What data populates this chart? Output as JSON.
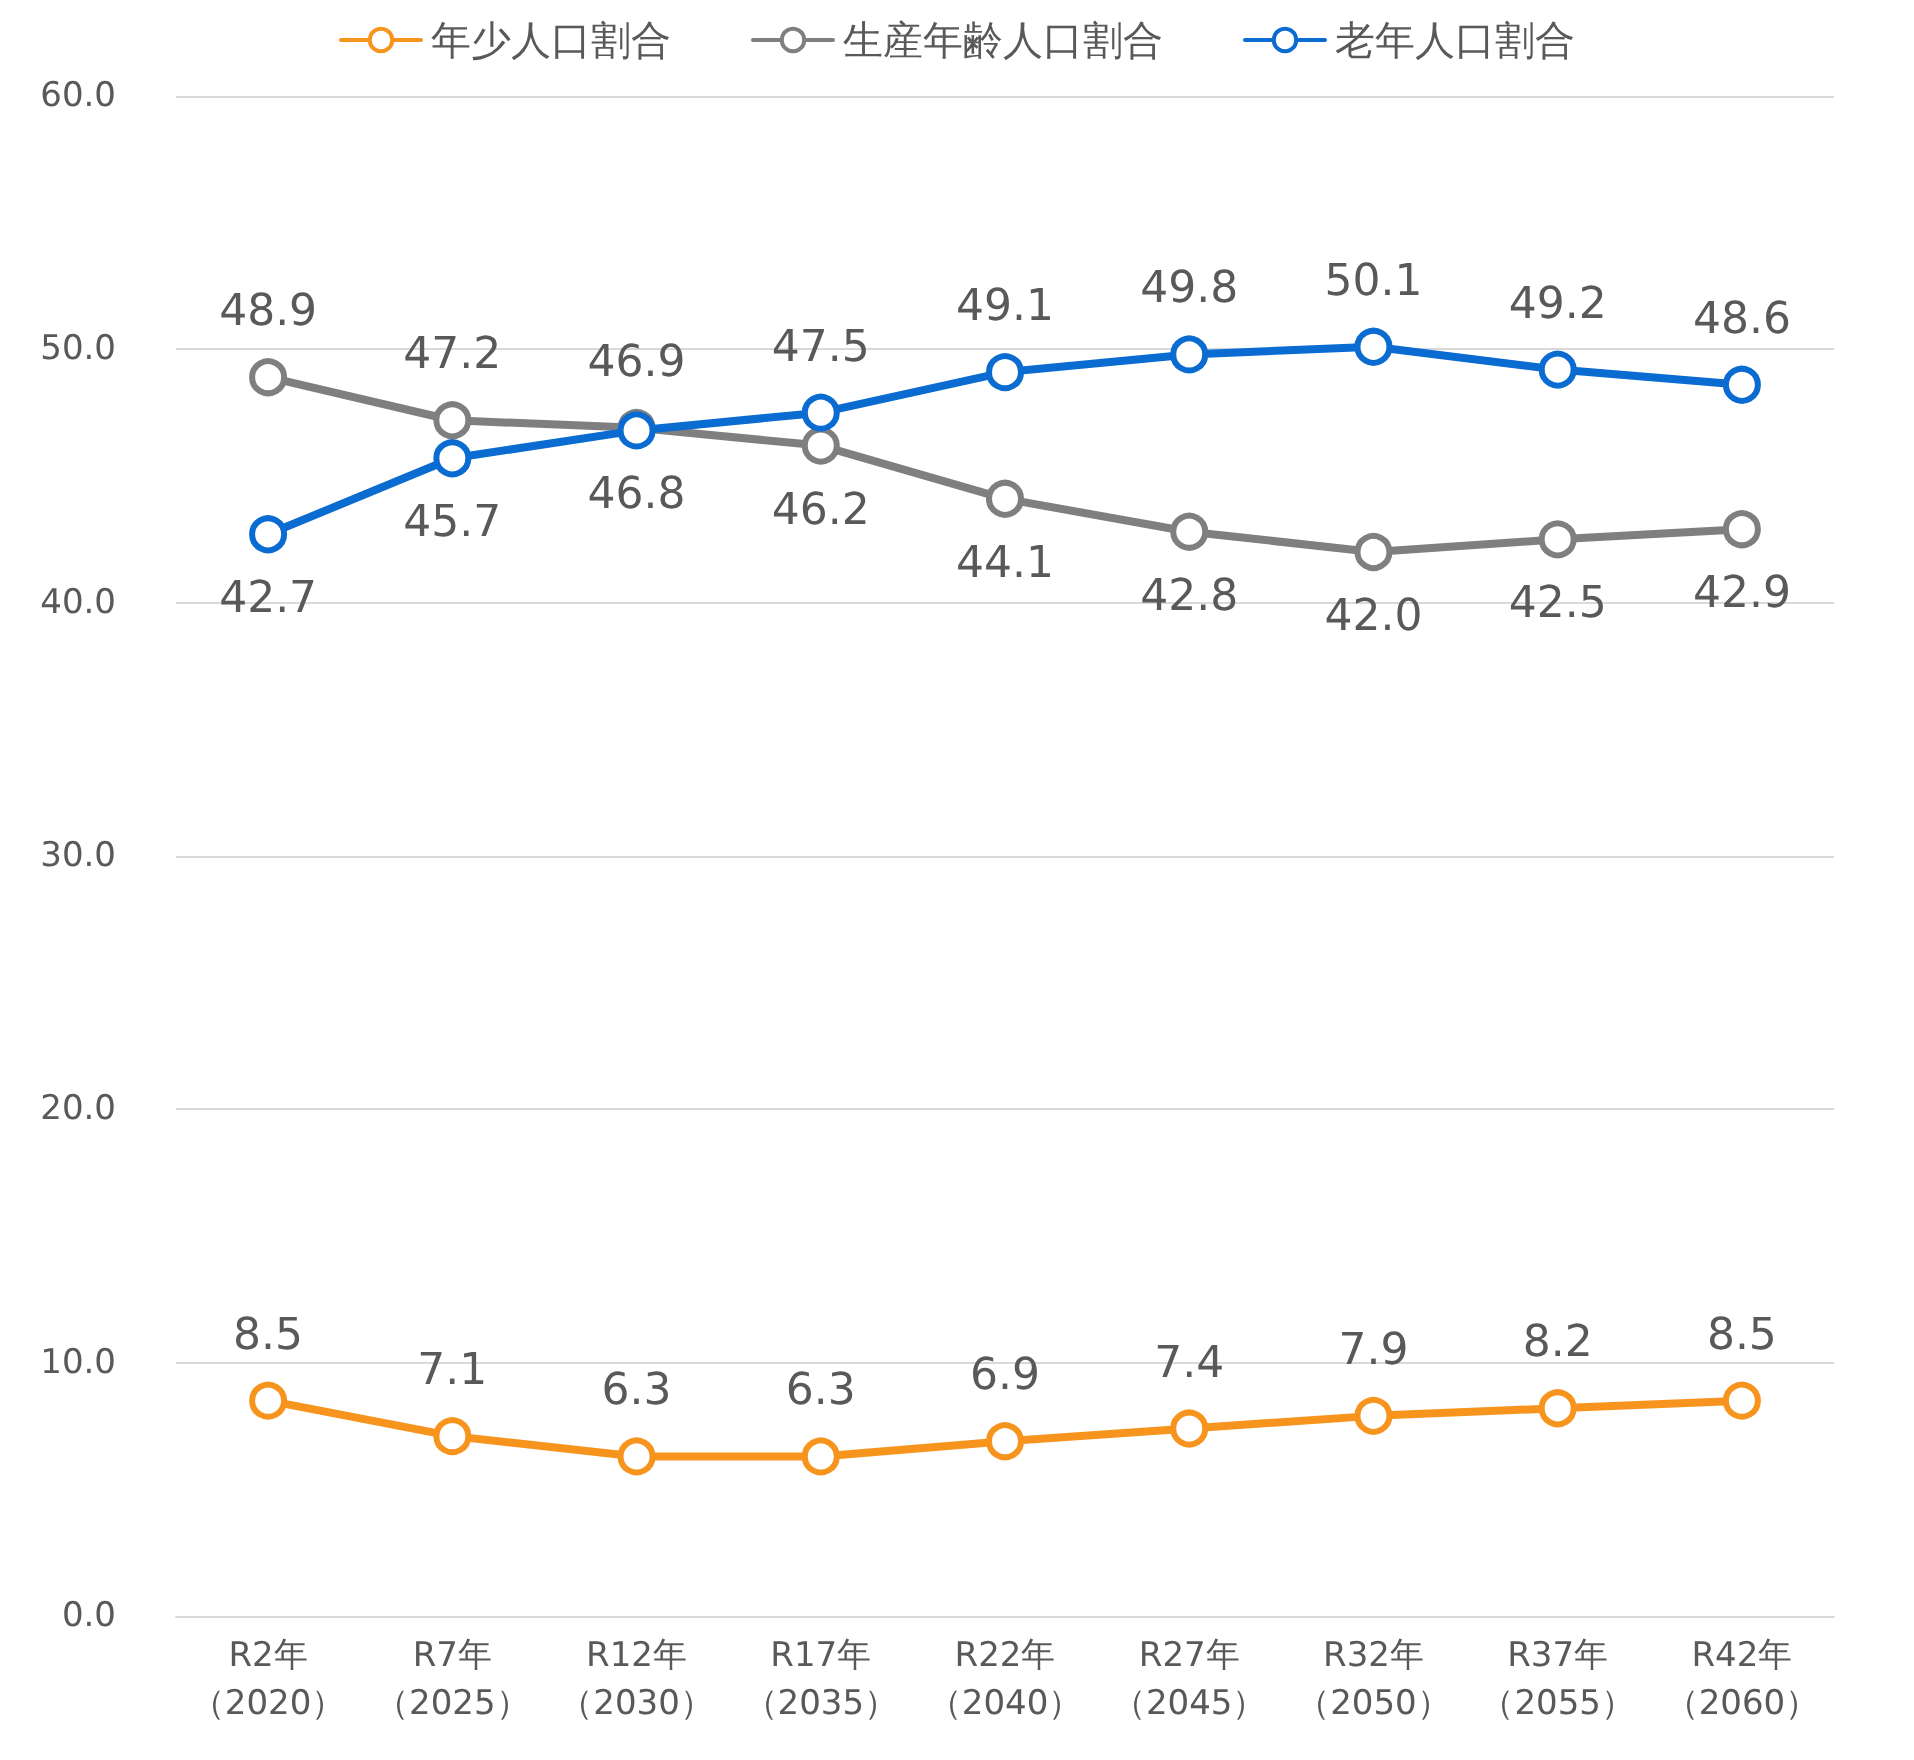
{
  "chart_data": {
    "type": "line",
    "categories": [
      "R2年（2020）",
      "R7年（2025）",
      "R12年（2030）",
      "R17年（2035）",
      "R22年（2040）",
      "R27年（2045）",
      "R32年（2050）",
      "R37年（2055）",
      "R42年（2060）"
    ],
    "series": [
      {
        "name": "年少人口割合",
        "color": "#f7941d",
        "values": [
          8.5,
          7.1,
          6.3,
          6.3,
          6.9,
          7.4,
          7.9,
          8.2,
          8.5
        ],
        "value_labels": [
          "8.5",
          "7.1",
          "6.3",
          "6.3",
          "6.9",
          "7.4",
          "7.9",
          "8.2",
          "8.5"
        ]
      },
      {
        "name": "生産年齢人口割合",
        "color": "#7f7f7f",
        "values": [
          48.9,
          47.2,
          46.9,
          46.2,
          44.1,
          42.8,
          42.0,
          42.5,
          42.9
        ],
        "value_labels": [
          "48.9",
          "47.2",
          "46.9",
          "46.2",
          "44.1",
          "42.8",
          "42.0",
          "42.5",
          "42.9"
        ]
      },
      {
        "name": "老年人口割合",
        "color": "#0a6bd1",
        "values": [
          42.7,
          45.7,
          46.8,
          47.5,
          49.1,
          49.8,
          50.1,
          49.2,
          48.6
        ],
        "value_labels": [
          "42.7",
          "45.7",
          "46.8",
          "47.5",
          "49.1",
          "49.8",
          "50.1",
          "49.2",
          "48.6"
        ]
      }
    ],
    "ylim": [
      0,
      60
    ],
    "yticks": [
      {
        "value": 0,
        "label": "0.0"
      },
      {
        "value": 10,
        "label": "10.0"
      },
      {
        "value": 20,
        "label": "20.0"
      },
      {
        "value": 30,
        "label": "30.0"
      },
      {
        "value": 40,
        "label": "40.0"
      },
      {
        "value": 50,
        "label": "50.0"
      },
      {
        "value": 60,
        "label": "60.0"
      }
    ],
    "grid": "y",
    "legend": "top",
    "marker": "circle",
    "line_style": "solid"
  }
}
